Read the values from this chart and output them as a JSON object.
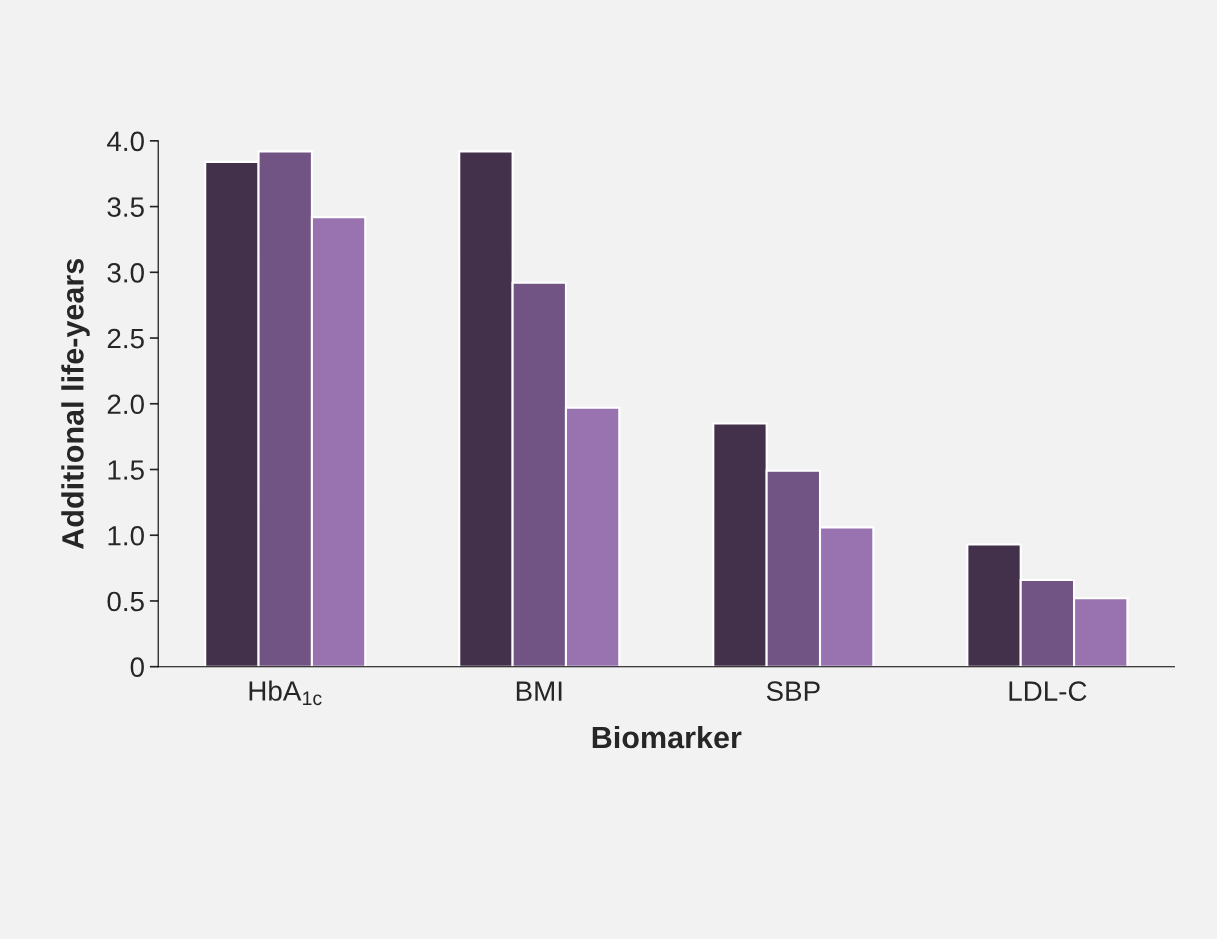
{
  "chart_data": {
    "type": "bar",
    "xlabel": "Biomarker",
    "ylabel": "Additional life-years",
    "categories": [
      "HbA$_{1c}$",
      "BMI",
      "SBP",
      "LDL-C"
    ],
    "series": [
      {
        "color": "#43304a",
        "values": [
          3.84,
          3.92,
          1.85,
          0.93
        ]
      },
      {
        "color": "#715483",
        "values": [
          3.92,
          2.92,
          1.49,
          0.66
        ]
      },
      {
        "color": "#9873b0",
        "values": [
          3.42,
          1.97,
          1.06,
          0.52
        ]
      }
    ],
    "ylim": [
      0,
      4.0
    ],
    "yticks": [
      0,
      0.5,
      {
        "value": 1,
        "label": "1.0"
      },
      1.5,
      {
        "value": 2,
        "label": "2.0"
      },
      2.5,
      {
        "value": 3,
        "label": "3.0"
      },
      3.5,
      {
        "value": 4,
        "label": "4.0"
      }
    ],
    "grid": false,
    "legend": false
  }
}
